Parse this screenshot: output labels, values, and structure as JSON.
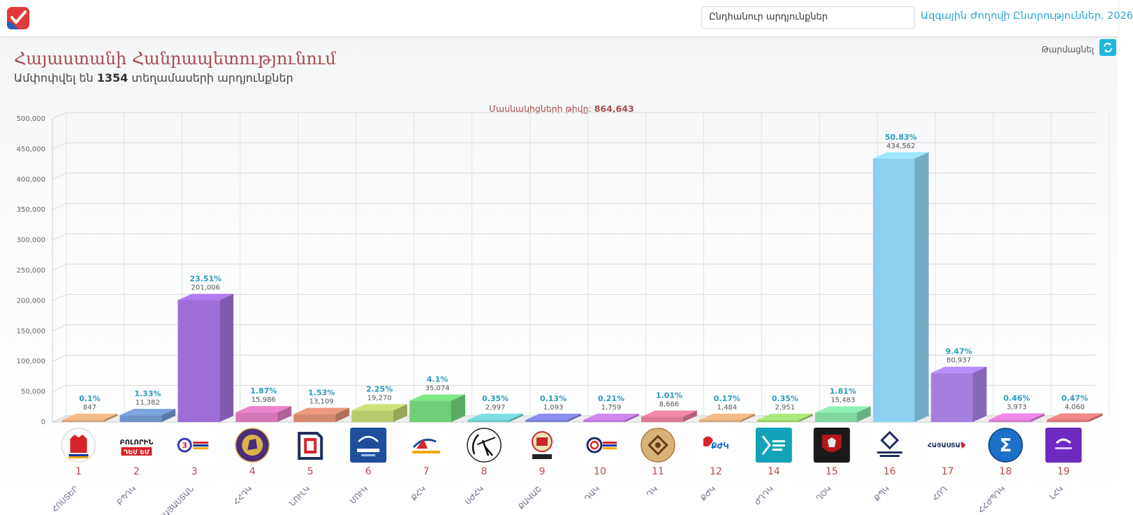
{
  "header": {
    "select_value": "Ընդհանուր արդյունքներ",
    "election_title": "Ազգային Ժողովի Ընտրություններ, 2026"
  },
  "page": {
    "title": "Հայաստանի Հանրապետությունում",
    "subtitle_prefix": "Ամփոփվել են",
    "subtitle_count": "1354",
    "subtitle_suffix": "տեղամասերի արդյունքներ",
    "refresh_label": "Թարմացնել",
    "participants_label": "Մասնակիցների թիվը:",
    "participants_value": "864,643"
  },
  "colors": {
    "brand_red": "#a84c4c",
    "accent_blue": "#28a8d8"
  },
  "chart_data": {
    "type": "bar",
    "ylim": [
      0,
      500000
    ],
    "yticks": [
      "0",
      "50,000",
      "100,000",
      "150,000",
      "200,000",
      "250,000",
      "300,000",
      "350,000",
      "400,000",
      "450,000",
      "500,000"
    ],
    "grid": true,
    "categories": [
      {
        "number": "1",
        "abbr": "ՀՈՍՏԵՐ",
        "value": 847,
        "value_label": "847",
        "percent": "0.1%",
        "color": "#d9a87a",
        "logo": "hand-logo"
      },
      {
        "number": "2",
        "abbr": "ԲՊԴԿ",
        "value": 11382,
        "value_label": "11,382",
        "percent": "1.33%",
        "color": "#6f93c9",
        "logo": "boloris-logo",
        "logo_text": "ԲՈԼՈՐԻՆ ԴԵՄ ԵՄ"
      },
      {
        "number": "3",
        "abbr": "ՀԱՅԱՍՏԱՆ",
        "value": 201006,
        "value_label": "201,006",
        "percent": "23.51%",
        "color": "#9d6fd6",
        "logo": "three-logo"
      },
      {
        "number": "4",
        "abbr": "ՀՀԴԿ",
        "value": 15986,
        "value_label": "15,986",
        "percent": "1.87%",
        "color": "#d477b6",
        "logo": "lion-emblem-logo"
      },
      {
        "number": "5",
        "abbr": "ՆՈՒԼԿ",
        "value": 13109,
        "value_label": "13,109",
        "percent": "1.53%",
        "color": "#d4896e",
        "logo": "geometric-logo"
      },
      {
        "number": "6",
        "abbr": "ՄՈՒԿ",
        "value": 19270,
        "value_label": "19,270",
        "percent": "2.25%",
        "color": "#b8cc6e",
        "logo": "blue-square-logo"
      },
      {
        "number": "7",
        "abbr": "ՔՀԿ",
        "value": 35074,
        "value_label": "35,074",
        "percent": "4.1%",
        "color": "#6fcf78",
        "logo": "wave-logo"
      },
      {
        "number": "8",
        "abbr": "ՍԺՀԿ",
        "value": 2997,
        "value_label": "2,997",
        "percent": "0.35%",
        "color": "#6fc7c9",
        "logo": "archer-logo"
      },
      {
        "number": "9",
        "abbr": "ՔԱՎԱՇ",
        "value": 1093,
        "value_label": "1,093",
        "percent": "0.13%",
        "color": "#7b7fd6",
        "logo": "castle-logo"
      },
      {
        "number": "10",
        "abbr": "ԴԱԿ",
        "value": 1759,
        "value_label": "1,759",
        "percent": "0.21%",
        "color": "#b87ad6",
        "logo": "spiral-logo"
      },
      {
        "number": "11",
        "abbr": "ԴԿ",
        "value": 8666,
        "value_label": "8,666",
        "percent": "1.01%",
        "color": "#d97a96",
        "logo": "ornament-logo"
      },
      {
        "number": "12",
        "abbr": "ՔԺԿ",
        "value": 1484,
        "value_label": "1,484",
        "percent": "0.17%",
        "color": "#d9a87a",
        "logo": "bird-logo"
      },
      {
        "number": "14",
        "abbr": "ԺՂԴԿ",
        "value": 2951,
        "value_label": "2,951",
        "percent": "0.35%",
        "color": "#9bcf6e",
        "logo": "teal-logo"
      },
      {
        "number": "15",
        "abbr": "ՂՕԿ",
        "value": 15483,
        "value_label": "15,483",
        "percent": "1.81%",
        "color": "#7fd6a0",
        "logo": "red-crest-logo"
      },
      {
        "number": "16",
        "abbr": "ՔՊԿ",
        "value": 434562,
        "value_label": "434,562",
        "percent": "50.83%",
        "color": "#8dcfee",
        "logo": "civil-contract-logo"
      },
      {
        "number": "17",
        "abbr": "ՀՈՂ",
        "value": 80937,
        "value_label": "80,937",
        "percent": "9.47%",
        "color": "#a47fe0",
        "logo": "hayastan-logo"
      },
      {
        "number": "18",
        "abbr": "ՀՀԺՊԴԿ",
        "value": 3973,
        "value_label": "3,973",
        "percent": "0.46%",
        "color": "#d67ad0",
        "logo": "sigma-logo"
      },
      {
        "number": "19",
        "abbr": "ԼՀԿ",
        "value": 4060,
        "value_label": "4,060",
        "percent": "0.47%",
        "color": "#d97a7a",
        "logo": "purple-logo"
      }
    ]
  }
}
